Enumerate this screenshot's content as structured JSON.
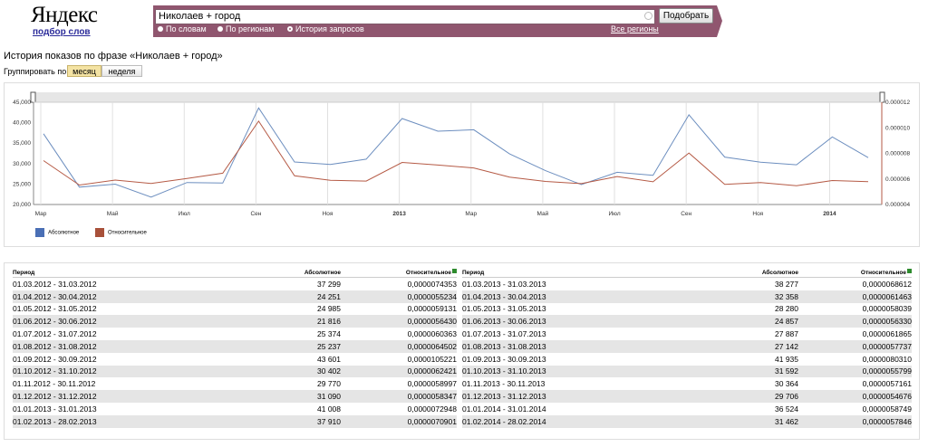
{
  "logo": {
    "text": "Яндекс",
    "subtitle": "подбор слов"
  },
  "search": {
    "query": "Николаев + город",
    "button": "Подобрать",
    "modes": [
      {
        "label": "По словам",
        "selected": false
      },
      {
        "label": "По регионам",
        "selected": false
      },
      {
        "label": "История запросов",
        "selected": true
      }
    ],
    "regions_link": "Все регионы"
  },
  "page_title": "История показов по фразе «Николаев + город»",
  "grouping": {
    "label": "Группировать по:",
    "options": [
      "месяц",
      "неделя"
    ],
    "selected": "месяц"
  },
  "chart_data": {
    "type": "line",
    "x_tick_labels": [
      "Мар",
      "Май",
      "Июл",
      "Сен",
      "Ноя",
      "2013",
      "Мар",
      "Май",
      "Июл",
      "Сен",
      "Ноя",
      "2014"
    ],
    "y_left_ticks": [
      "45,000",
      "40,000",
      "35,000",
      "30,000",
      "25,000",
      "20,000"
    ],
    "y_right_ticks": [
      "0.000012",
      "0.000010",
      "0.000008",
      "0.000006",
      "0.000004"
    ],
    "ylim_left": [
      20000,
      45000
    ],
    "ylim_right": [
      4e-06,
      1.2e-05
    ],
    "series": [
      {
        "name": "Абсолютное",
        "color": "#6c8ebf",
        "axis": "left",
        "values": [
          37299,
          24251,
          24985,
          21816,
          25374,
          25237,
          43601,
          30402,
          29770,
          31090,
          41008,
          37910,
          38277,
          32358,
          28280,
          24857,
          27887,
          27142,
          41935,
          31592,
          30364,
          29706,
          36524,
          31462
        ]
      },
      {
        "name": "Относительное",
        "color": "#b55a45",
        "axis": "right",
        "values": [
          7.4353e-06,
          5.5234e-06,
          5.9131e-06,
          5.643e-06,
          6.0363e-06,
          6.4502e-06,
          1.05221e-05,
          6.2421e-06,
          5.8997e-06,
          5.8347e-06,
          7.2948e-06,
          7.0901e-06,
          6.8612e-06,
          6.1463e-06,
          5.8039e-06,
          5.633e-06,
          6.1865e-06,
          5.7737e-06,
          8.031e-06,
          5.5799e-06,
          5.7161e-06,
          5.4676e-06,
          5.8749e-06,
          5.7846e-06
        ]
      }
    ],
    "legend": [
      "Абсолютное",
      "Относительное"
    ]
  },
  "table": {
    "headers": {
      "period": "Период",
      "absolute": "Абсолютное",
      "relative": "Относительное"
    },
    "left": [
      [
        "01.03.2012 - 31.03.2012",
        "37 299",
        "0,0000074353"
      ],
      [
        "01.04.2012 - 30.04.2012",
        "24 251",
        "0,0000055234"
      ],
      [
        "01.05.2012 - 31.05.2012",
        "24 985",
        "0,0000059131"
      ],
      [
        "01.06.2012 - 30.06.2012",
        "21 816",
        "0,0000056430"
      ],
      [
        "01.07.2012 - 31.07.2012",
        "25 374",
        "0,0000060363"
      ],
      [
        "01.08.2012 - 31.08.2012",
        "25 237",
        "0,0000064502"
      ],
      [
        "01.09.2012 - 30.09.2012",
        "43 601",
        "0,0000105221"
      ],
      [
        "01.10.2012 - 31.10.2012",
        "30 402",
        "0,0000062421"
      ],
      [
        "01.11.2012 - 30.11.2012",
        "29 770",
        "0,0000058997"
      ],
      [
        "01.12.2012 - 31.12.2012",
        "31 090",
        "0,0000058347"
      ],
      [
        "01.01.2013 - 31.01.2013",
        "41 008",
        "0,0000072948"
      ],
      [
        "01.02.2013 - 28.02.2013",
        "37 910",
        "0,0000070901"
      ]
    ],
    "right": [
      [
        "01.03.2013 - 31.03.2013",
        "38 277",
        "0,0000068612"
      ],
      [
        "01.04.2013 - 30.04.2013",
        "32 358",
        "0,0000061463"
      ],
      [
        "01.05.2013 - 31.05.2013",
        "28 280",
        "0,0000058039"
      ],
      [
        "01.06.2013 - 30.06.2013",
        "24 857",
        "0,0000056330"
      ],
      [
        "01.07.2013 - 31.07.2013",
        "27 887",
        "0,0000061865"
      ],
      [
        "01.08.2013 - 31.08.2013",
        "27 142",
        "0,0000057737"
      ],
      [
        "01.09.2013 - 30.09.2013",
        "41 935",
        "0,0000080310"
      ],
      [
        "01.10.2013 - 31.10.2013",
        "31 592",
        "0,0000055799"
      ],
      [
        "01.11.2013 - 30.11.2013",
        "30 364",
        "0,0000057161"
      ],
      [
        "01.12.2013 - 31.12.2013",
        "29 706",
        "0,0000054676"
      ],
      [
        "01.01.2014 - 31.01.2014",
        "36 524",
        "0,0000058749"
      ],
      [
        "01.02.2014 - 28.02.2014",
        "31 462",
        "0,0000057846"
      ]
    ]
  }
}
